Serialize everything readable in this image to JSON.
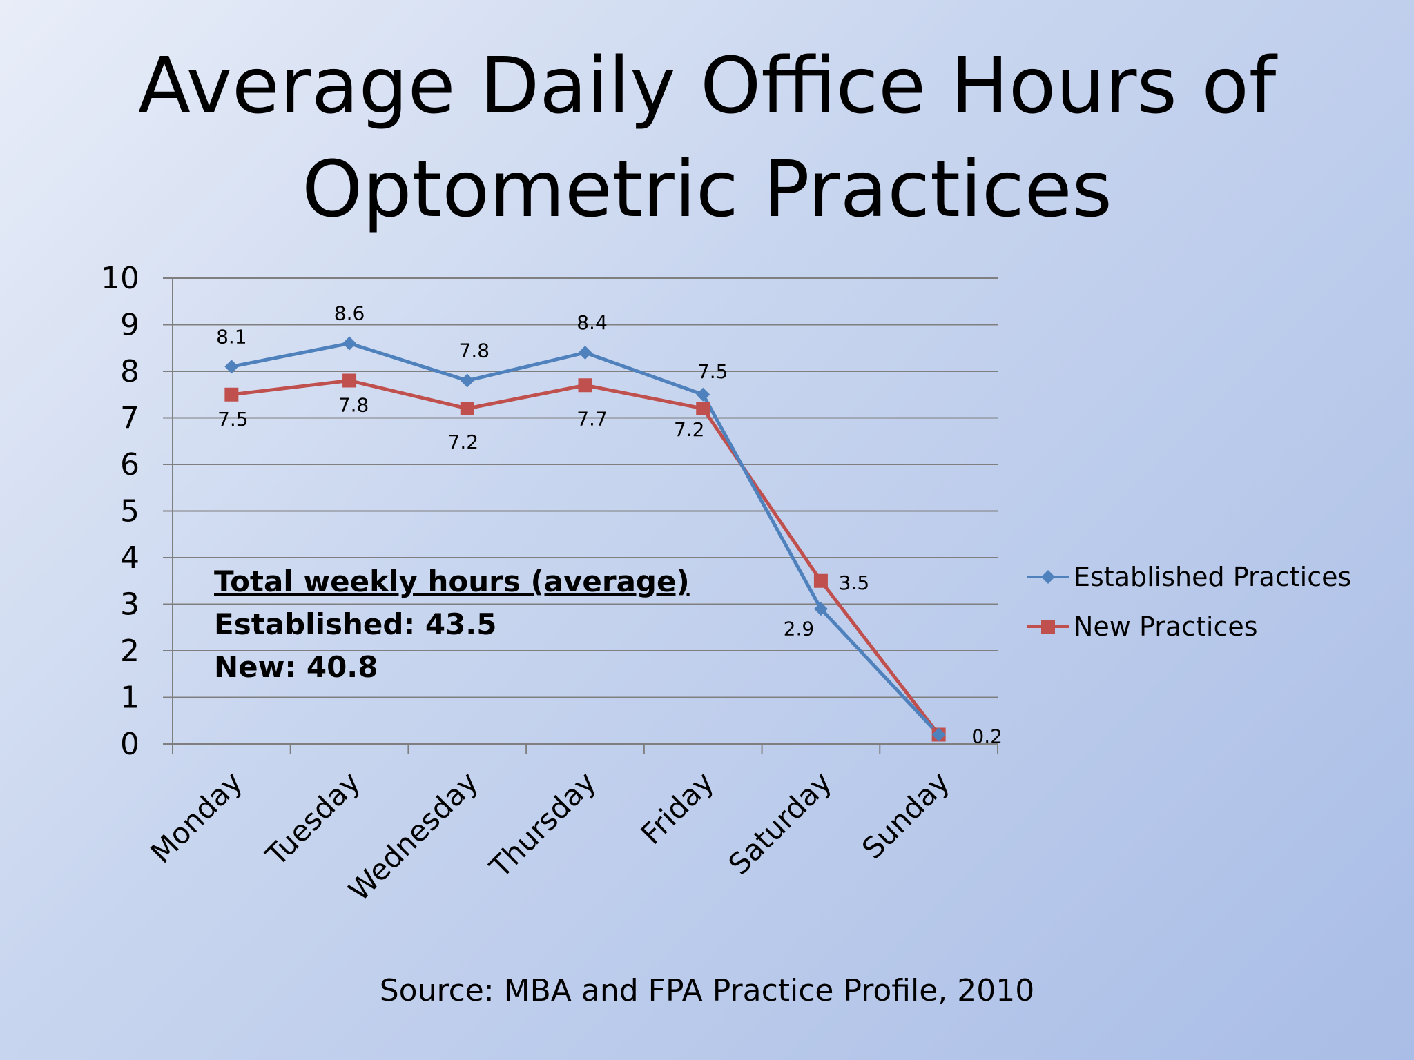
{
  "title_lines": [
    "Average Daily Office Hours of",
    "Optometric Practices"
  ],
  "source": "Source: MBA and FPA  Practice Profile, 2010",
  "summary": {
    "heading": "Total weekly hours (average)",
    "established": "Established: 43.5",
    "new": "New: 40.8"
  },
  "chart_data": {
    "type": "line",
    "categories": [
      "Monday",
      "Tuesday",
      "Wednesday",
      "Thursday",
      "Friday",
      "Saturday",
      "Sunday"
    ],
    "ylim": [
      0,
      10
    ],
    "yticks": [
      "0",
      "1",
      "2",
      "3",
      "4",
      "5",
      "6",
      "7",
      "8",
      "9",
      "10"
    ],
    "grid": true,
    "legend_position": "right",
    "series": [
      {
        "name": "Established Practices",
        "values": [
          8.1,
          8.6,
          7.8,
          8.4,
          7.5,
          2.9,
          0.2
        ],
        "labels": [
          "8.1",
          "8.6",
          "7.8",
          "8.4",
          "7.5",
          "2.9",
          ""
        ],
        "color": "#4f81bd",
        "marker": "diamond"
      },
      {
        "name": "New Practices",
        "values": [
          7.5,
          7.8,
          7.2,
          7.7,
          7.2,
          3.5,
          0.2
        ],
        "labels": [
          "7.5",
          "7.8",
          "7.2",
          "7.7",
          "7.2",
          "3.5",
          "0.2"
        ],
        "color": "#c0504d",
        "marker": "square"
      }
    ]
  }
}
